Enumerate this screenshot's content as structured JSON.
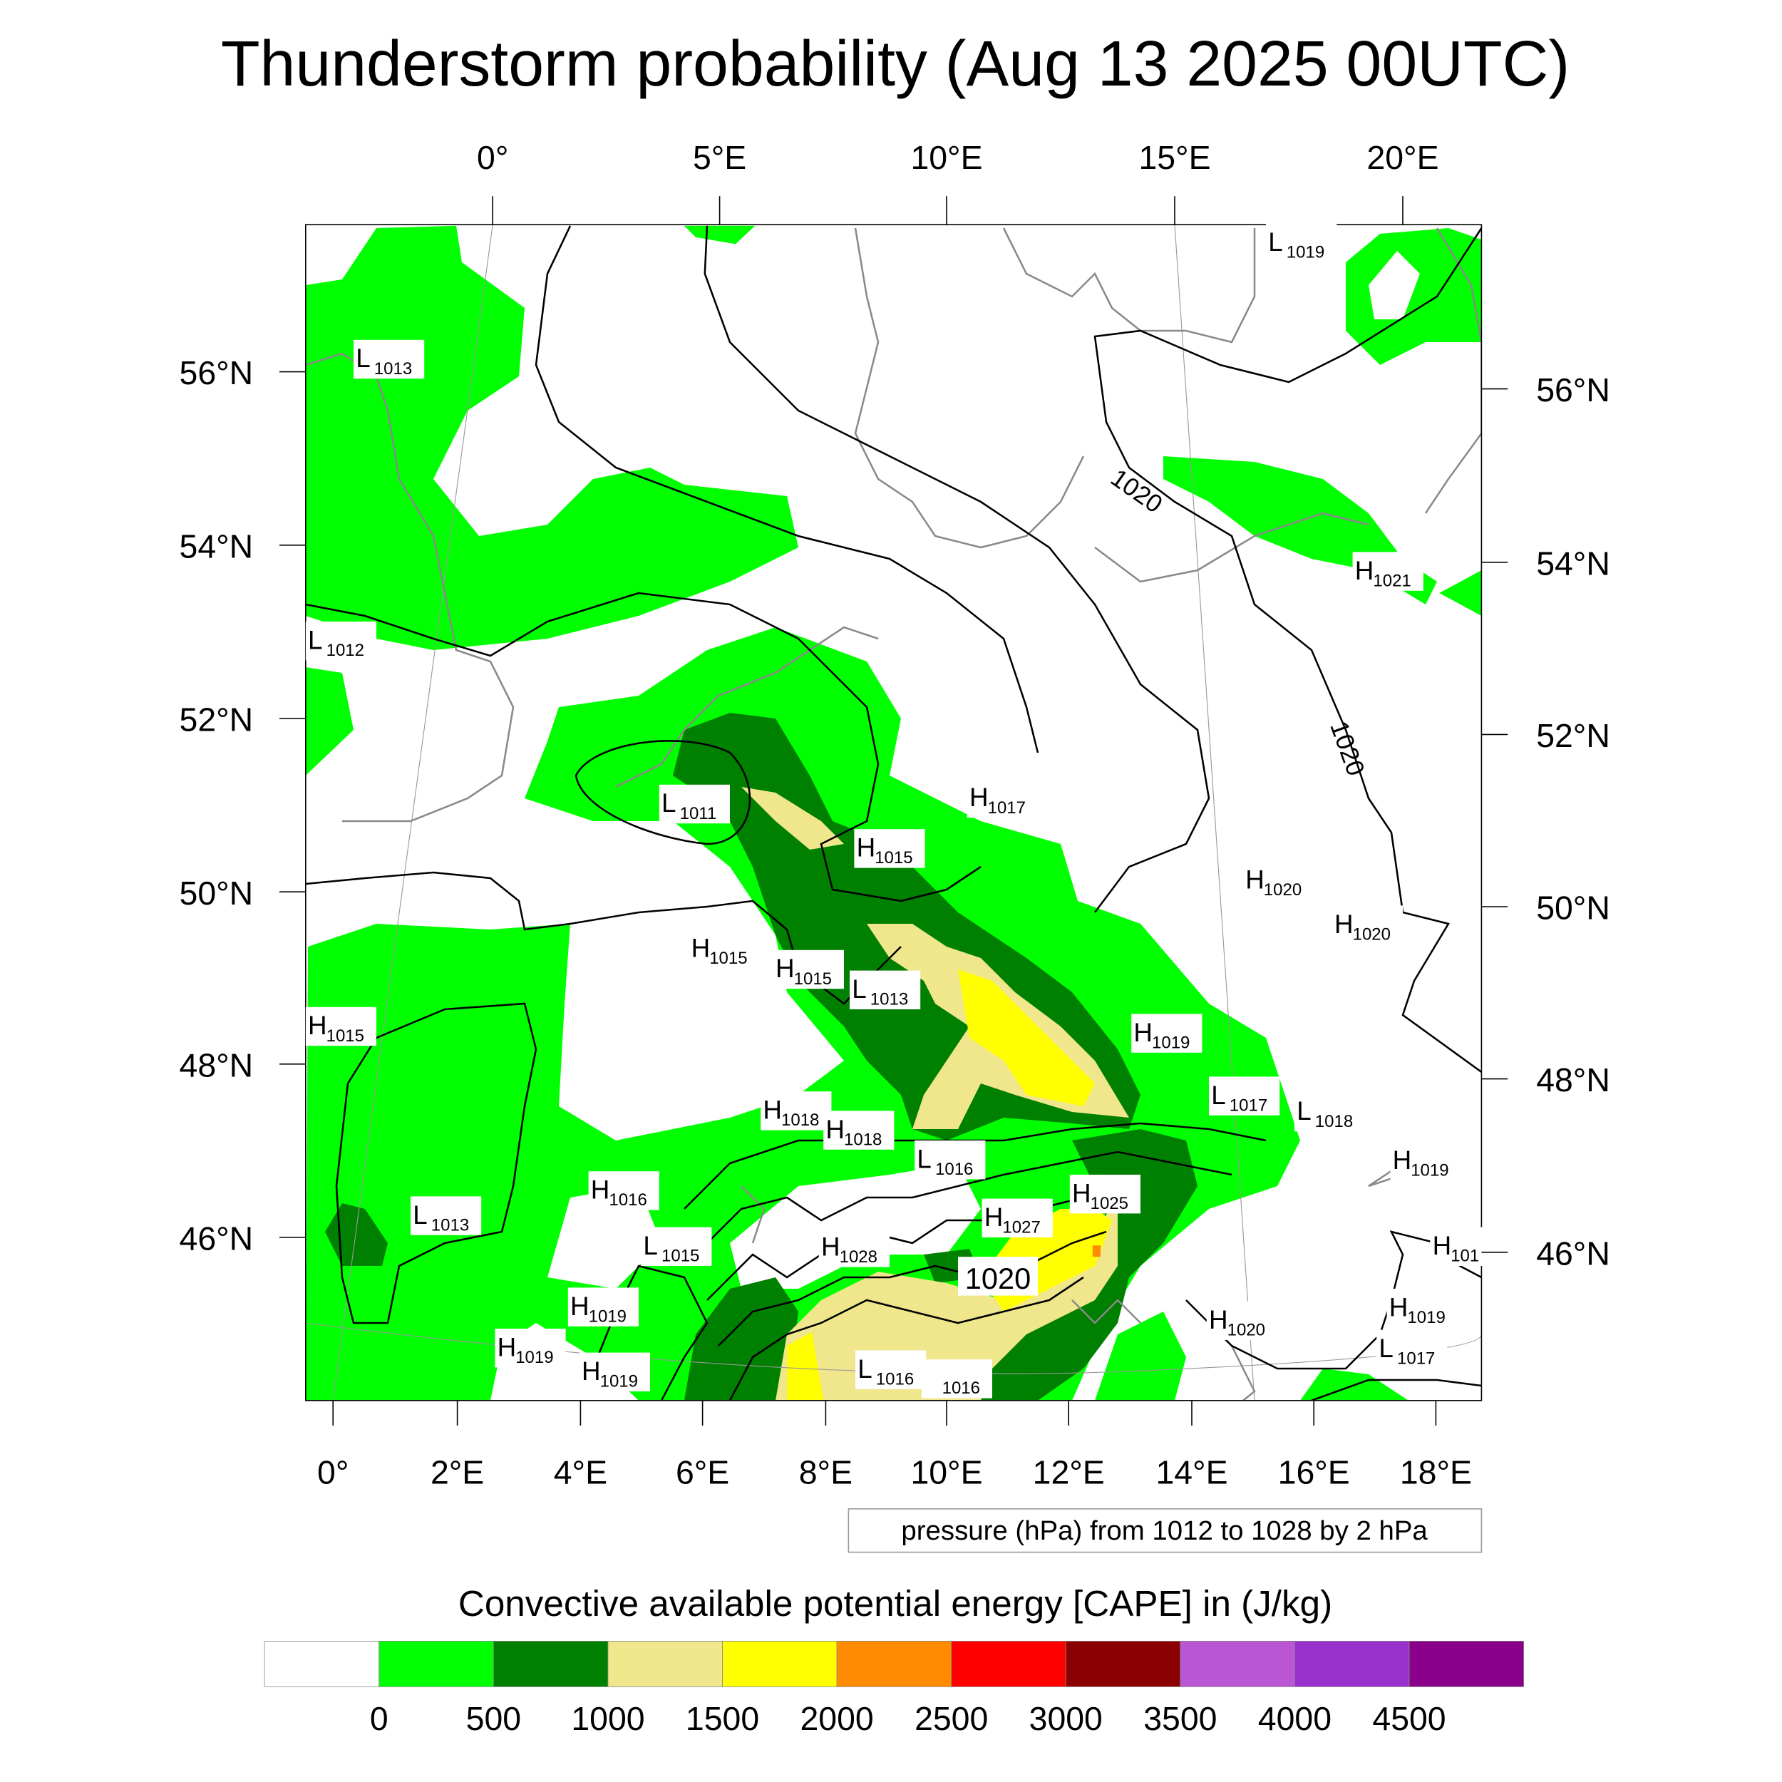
{
  "title": "Thunderstorm probability (Aug 13 2025 00UTC)",
  "axes": {
    "top_lon": [
      "0°",
      "5°E",
      "10°E",
      "15°E",
      "20°E"
    ],
    "bottom_lon": [
      "0°",
      "2°E",
      "4°E",
      "6°E",
      "8°E",
      "10°E",
      "12°E",
      "14°E",
      "16°E",
      "18°E"
    ],
    "left_lat": [
      "56°N",
      "54°N",
      "52°N",
      "50°N",
      "48°N",
      "46°N"
    ],
    "right_lat": [
      "56°N",
      "54°N",
      "52°N",
      "50°N",
      "48°N",
      "46°N"
    ]
  },
  "pressure_note": "pressure (hPa) from 1012 to 1028 by 2 hPa",
  "contour_labels": [
    "1020",
    "1020",
    "1020"
  ],
  "pressure_labels": [
    {
      "type": "L",
      "value": "1013"
    },
    {
      "type": "L",
      "value": "1012"
    },
    {
      "type": "L",
      "value": "1011"
    },
    {
      "type": "H",
      "value": "1015"
    },
    {
      "type": "H",
      "value": "1017"
    },
    {
      "type": "H",
      "value": "1015"
    },
    {
      "type": "H",
      "value": "1015"
    },
    {
      "type": "L",
      "value": "1013"
    },
    {
      "type": "H",
      "value": "1015"
    },
    {
      "type": "H",
      "value": "1019"
    },
    {
      "type": "H",
      "value": "1020"
    },
    {
      "type": "H",
      "value": "1020"
    },
    {
      "type": "H",
      "value": "1021"
    },
    {
      "type": "L",
      "value": "1019"
    },
    {
      "type": "L",
      "value": "1017"
    },
    {
      "type": "L",
      "value": "1018"
    },
    {
      "type": "H",
      "value": "1019"
    },
    {
      "type": "H",
      "value": "1018"
    },
    {
      "type": "H",
      "value": "1018"
    },
    {
      "type": "L",
      "value": "1016"
    },
    {
      "type": "H",
      "value": "1016"
    },
    {
      "type": "H",
      "value": "1025"
    },
    {
      "type": "L",
      "value": "1013"
    },
    {
      "type": "H",
      "value": "1027"
    },
    {
      "type": "L",
      "value": "1015"
    },
    {
      "type": "H",
      "value": "1028"
    },
    {
      "type": "H",
      "value": "101"
    },
    {
      "type": "H",
      "value": "1019"
    },
    {
      "type": "H",
      "value": "1019"
    },
    {
      "type": "H",
      "value": "1020"
    },
    {
      "type": "H",
      "value": "1019"
    },
    {
      "type": "L",
      "value": "1017"
    },
    {
      "type": "H",
      "value": "1019"
    },
    {
      "type": "L",
      "value": "1016"
    },
    {
      "type": "",
      "value": "1016"
    }
  ],
  "colorbar": {
    "title": "Convective available potential energy [CAPE] in (J/kg)",
    "labels": [
      "0",
      "500",
      "1000",
      "1500",
      "2000",
      "2500",
      "3000",
      "3500",
      "4000",
      "4500"
    ],
    "colors": [
      "#ffffff",
      "#00ff00",
      "#008000",
      "#f0e68c",
      "#ffff00",
      "#ff8c00",
      "#ff0000",
      "#8b0000",
      "#ba55d3",
      "#9932cc",
      "#8b008b"
    ]
  }
}
